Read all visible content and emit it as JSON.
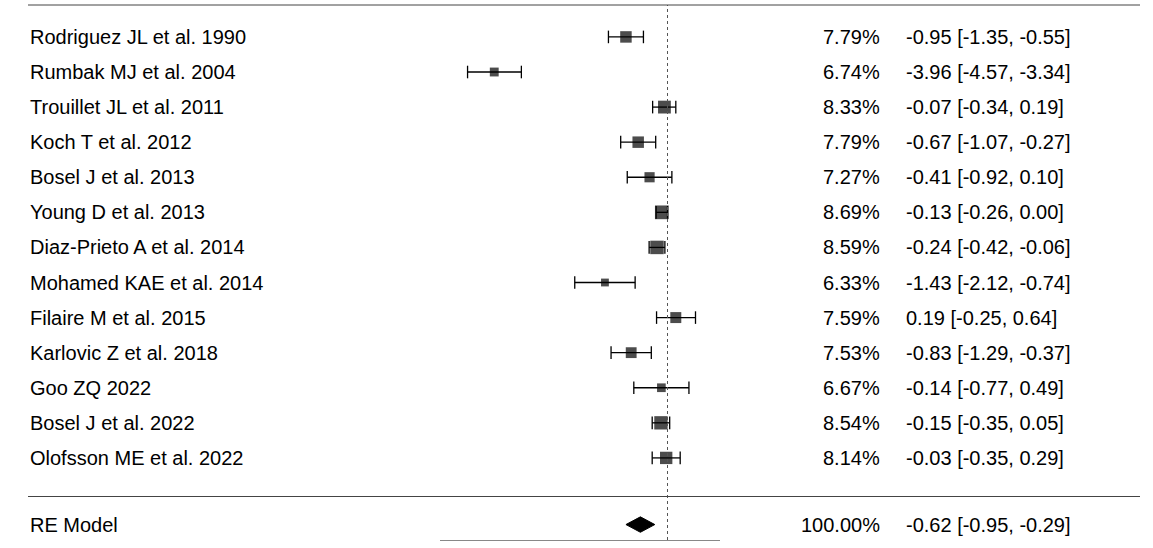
{
  "chart_data": {
    "type": "forest",
    "categories": [
      "Rodriguez JL et al. 1990",
      "Rumbak MJ et al. 2004",
      "Trouillet JL et al. 2011",
      "Koch T et al. 2012",
      "Bosel J et al. 2013",
      "Young D et al. 2013",
      "Diaz-Prieto A et al. 2014",
      "Mohamed KAE et al. 2014",
      "Filaire M et al. 2015",
      "Karlovic Z et al. 2018",
      "Goo ZQ 2022",
      "Bosel J et al. 2022",
      "Olofsson ME et al. 2022"
    ],
    "values": [
      -0.95,
      -3.96,
      -0.07,
      -0.67,
      -0.41,
      -0.13,
      -0.24,
      -1.43,
      0.19,
      -0.83,
      -0.14,
      -0.15,
      -0.03
    ],
    "ci_lower": [
      -1.35,
      -4.57,
      -0.34,
      -1.07,
      -0.92,
      -0.26,
      -0.42,
      -2.12,
      -0.25,
      -1.29,
      -0.77,
      -0.35,
      -0.35
    ],
    "ci_upper": [
      -0.55,
      -3.34,
      0.19,
      -0.27,
      0.1,
      0.0,
      -0.06,
      -0.74,
      0.64,
      -0.37,
      0.49,
      0.05,
      0.29
    ],
    "weights": [
      7.79,
      6.74,
      8.33,
      7.79,
      7.27,
      8.69,
      8.59,
      6.33,
      7.59,
      7.53,
      6.67,
      8.54,
      8.14
    ],
    "weight_labels": [
      "7.79%",
      "6.74%",
      "8.33%",
      "7.79%",
      "7.27%",
      "8.69%",
      "8.59%",
      "6.33%",
      "7.59%",
      "7.53%",
      "6.67%",
      "8.54%",
      "8.14%"
    ],
    "value_labels": [
      "-0.95 [-1.35, -0.55]",
      "-3.96 [-4.57, -3.34]",
      "-0.07 [-0.34, 0.19]",
      "-0.67 [-1.07, -0.27]",
      "-0.41 [-0.92, 0.10]",
      "-0.13 [-0.26, 0.00]",
      "-0.24 [-0.42, -0.06]",
      "-1.43 [-2.12, -0.74]",
      "0.19 [-0.25, 0.64]",
      "-0.83 [-1.29, -0.37]",
      "-0.14 [-0.77, 0.49]",
      "-0.15 [-0.35, 0.05]",
      "-0.03 [-0.35, 0.29]"
    ],
    "summary": {
      "label": "RE Model",
      "value": -0.62,
      "ci_lower": -0.95,
      "ci_upper": -0.29,
      "weight": 100,
      "weight_label": "100.00%",
      "value_label": "-0.62 [-0.95, -0.29]"
    },
    "reference_line": 0,
    "xlim": [
      -5.2,
      1.2
    ],
    "xticks": [],
    "tick_labels": false,
    "color": "#000000",
    "marker": "square"
  }
}
